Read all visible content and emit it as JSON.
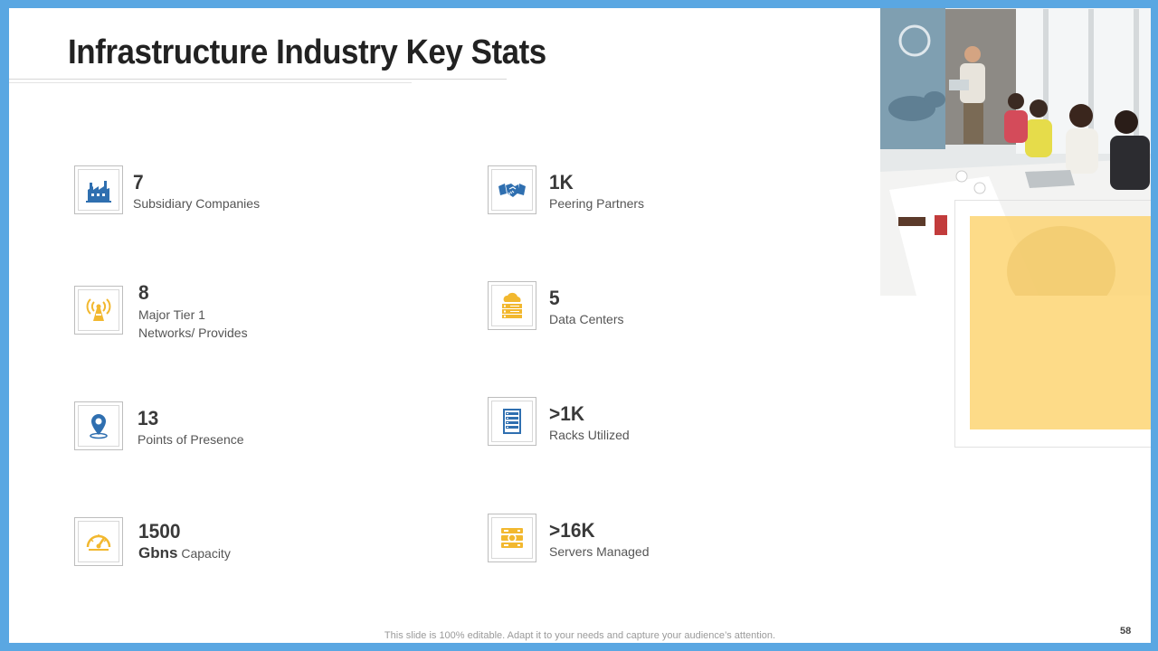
{
  "slide": {
    "title": "Infrastructure Industry Key Stats",
    "footer": "This slide is 100% editable. Adapt it to your needs and capture your audience’s attention.",
    "page_number": "58"
  },
  "colors": {
    "border": "#5AA7E2",
    "icon_blue": "#2F6FB0",
    "icon_yellow": "#F2B82F",
    "accent_yellow": "#FDD36E"
  },
  "stats": [
    {
      "value": "7",
      "label_lines": [
        "Subsidiary  Companies"
      ],
      "icon": "factory-icon"
    },
    {
      "value": "1K",
      "label_lines": [
        "Peering Partners"
      ],
      "icon": "handshake-icon"
    },
    {
      "value": "8",
      "label_lines": [
        "Major  Tier 1",
        "Networks/ Provides"
      ],
      "icon": "antenna-icon"
    },
    {
      "value": "5",
      "label_lines": [
        "Data  Centers"
      ],
      "icon": "cloud-server-icon"
    },
    {
      "value": "13",
      "label_lines": [
        "Points  of Presence"
      ],
      "icon": "location-pin-icon"
    },
    {
      "value": ">1K",
      "label_lines": [
        "Racks  Utilized"
      ],
      "icon": "server-rack-icon"
    },
    {
      "value": "1500",
      "label_bold": "Gbns",
      "label_lines": [
        "Capacity"
      ],
      "icon": "speedometer-icon"
    },
    {
      "value": ">16K",
      "label_lines": [
        "Servers  Managed"
      ],
      "icon": "servers-icon"
    }
  ]
}
